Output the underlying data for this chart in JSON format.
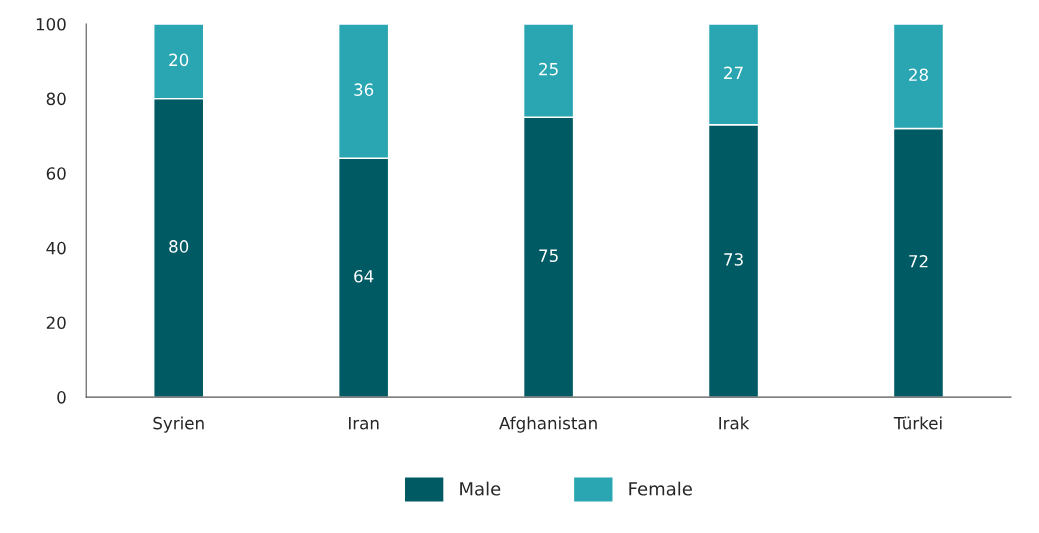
{
  "chart_data": {
    "type": "bar",
    "stacked": true,
    "data_labels": true,
    "categories": [
      "Syrien",
      "Iran",
      "Afghanistan",
      "Irak",
      "Türkei"
    ],
    "series": [
      {
        "name": "Male",
        "color": "#005a64",
        "values": [
          80,
          64,
          75,
          73,
          72
        ]
      },
      {
        "name": "Female",
        "color": "#2aa6b3",
        "values": [
          20,
          36,
          25,
          27,
          28
        ]
      }
    ],
    "ylim": [
      0,
      100
    ],
    "yticks": [
      0,
      20,
      40,
      60,
      80,
      100
    ],
    "grid": false,
    "legend": "bottom"
  }
}
